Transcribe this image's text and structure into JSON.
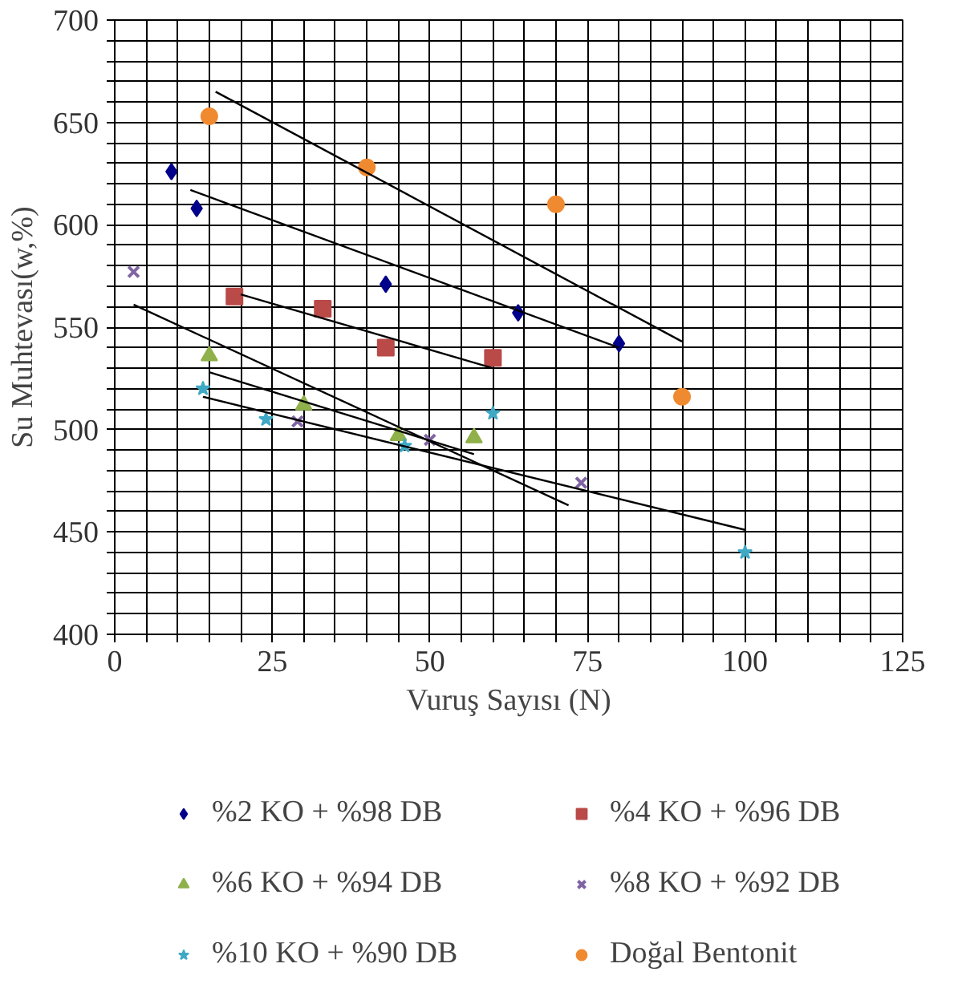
{
  "chart_data": {
    "type": "scatter",
    "xlabel": "Vuruş Sayısı (N)",
    "ylabel": "Su Muhtevası(w,%)",
    "xlim": [
      0,
      125
    ],
    "ylim": [
      400,
      700
    ],
    "xticks": [
      0,
      {
        "value": 5,
        "label": null
      },
      {
        "value": 10,
        "label": null
      },
      {
        "value": 15,
        "label": null
      },
      {
        "value": 20,
        "label": null
      },
      25,
      {
        "value": 30,
        "label": null
      },
      {
        "value": 35,
        "label": null
      },
      {
        "value": 40,
        "label": null
      },
      {
        "value": 45,
        "label": null
      },
      50,
      {
        "value": 55,
        "label": null
      },
      {
        "value": 60,
        "label": null
      },
      {
        "value": 65,
        "label": null
      },
      {
        "value": 70,
        "label": null
      },
      75,
      {
        "value": 80,
        "label": null
      },
      {
        "value": 85,
        "label": null
      },
      {
        "value": 90,
        "label": null
      },
      {
        "value": 95,
        "label": null
      },
      100,
      {
        "value": 105,
        "label": null
      },
      {
        "value": 110,
        "label": null
      },
      {
        "value": 115,
        "label": null
      },
      {
        "value": 120,
        "label": null
      },
      125
    ],
    "yticks": [
      400,
      {
        "value": 410,
        "label": null
      },
      {
        "value": 420,
        "label": null
      },
      {
        "value": 430,
        "label": null
      },
      {
        "value": 440,
        "label": null
      },
      450,
      {
        "value": 460,
        "label": null
      },
      {
        "value": 470,
        "label": null
      },
      {
        "value": 480,
        "label": null
      },
      {
        "value": 490,
        "label": null
      },
      500,
      {
        "value": 510,
        "label": null
      },
      {
        "value": 520,
        "label": null
      },
      {
        "value": 530,
        "label": null
      },
      {
        "value": 540,
        "label": null
      },
      550,
      {
        "value": 560,
        "label": null
      },
      {
        "value": 570,
        "label": null
      },
      {
        "value": 580,
        "label": null
      },
      {
        "value": 590,
        "label": null
      },
      600,
      {
        "value": 610,
        "label": null
      },
      {
        "value": 620,
        "label": null
      },
      {
        "value": 630,
        "label": null
      },
      {
        "value": 640,
        "label": null
      },
      650,
      {
        "value": 660,
        "label": null
      },
      {
        "value": 670,
        "label": null
      },
      {
        "value": 680,
        "label": null
      },
      {
        "value": 690,
        "label": null
      },
      700
    ],
    "grid": true,
    "legend": "bottom",
    "series": [
      {
        "name": "%2 KO + %98 DB",
        "color": "#00008b",
        "marker": "diamond",
        "x": [
          9,
          13,
          43,
          64,
          80
        ],
        "values": [
          626,
          608,
          571,
          557,
          542
        ]
      },
      {
        "name": "%4 KO + %96 DB",
        "color": "#b94a48",
        "marker": "square",
        "x": [
          19,
          33,
          43,
          60
        ],
        "values": [
          565,
          559,
          540,
          535
        ]
      },
      {
        "name": "%6 KO + %94 DB",
        "color": "#8fb04a",
        "marker": "triangle",
        "x": [
          15,
          30,
          45,
          57
        ],
        "values": [
          536,
          512,
          497,
          496
        ]
      },
      {
        "name": "%8 KO + %92 DB",
        "color": "#8064a2",
        "marker": "x",
        "x": [
          3,
          29,
          50,
          74
        ],
        "values": [
          577,
          504,
          495,
          474
        ]
      },
      {
        "name": "%10 KO + %90 DB",
        "color": "#3fa9c5",
        "marker": "star",
        "x": [
          14,
          24,
          46,
          60,
          100
        ],
        "values": [
          520,
          505,
          492,
          508,
          440
        ]
      },
      {
        "name": "Doğal Bentonit",
        "color": "#f08a30",
        "marker": "circle",
        "x": [
          15,
          40,
          70,
          90
        ],
        "values": [
          653,
          628,
          610,
          516
        ]
      },
      {
        "type": "line",
        "color": "#000000",
        "x": [
          12,
          80
        ],
        "values": [
          617,
          540
        ]
      },
      {
        "type": "line",
        "color": "#000000",
        "x": [
          20,
          60
        ],
        "values": [
          566,
          530
        ]
      },
      {
        "type": "line",
        "color": "#000000",
        "x": [
          15,
          57
        ],
        "values": [
          528,
          488
        ]
      },
      {
        "type": "line",
        "color": "#000000",
        "x": [
          3,
          72
        ],
        "values": [
          561,
          463
        ]
      },
      {
        "type": "line",
        "color": "#000000",
        "x": [
          14,
          100
        ],
        "values": [
          516,
          451
        ]
      },
      {
        "type": "line",
        "color": "#000000",
        "x": [
          16,
          90
        ],
        "values": [
          665,
          543
        ]
      }
    ]
  }
}
